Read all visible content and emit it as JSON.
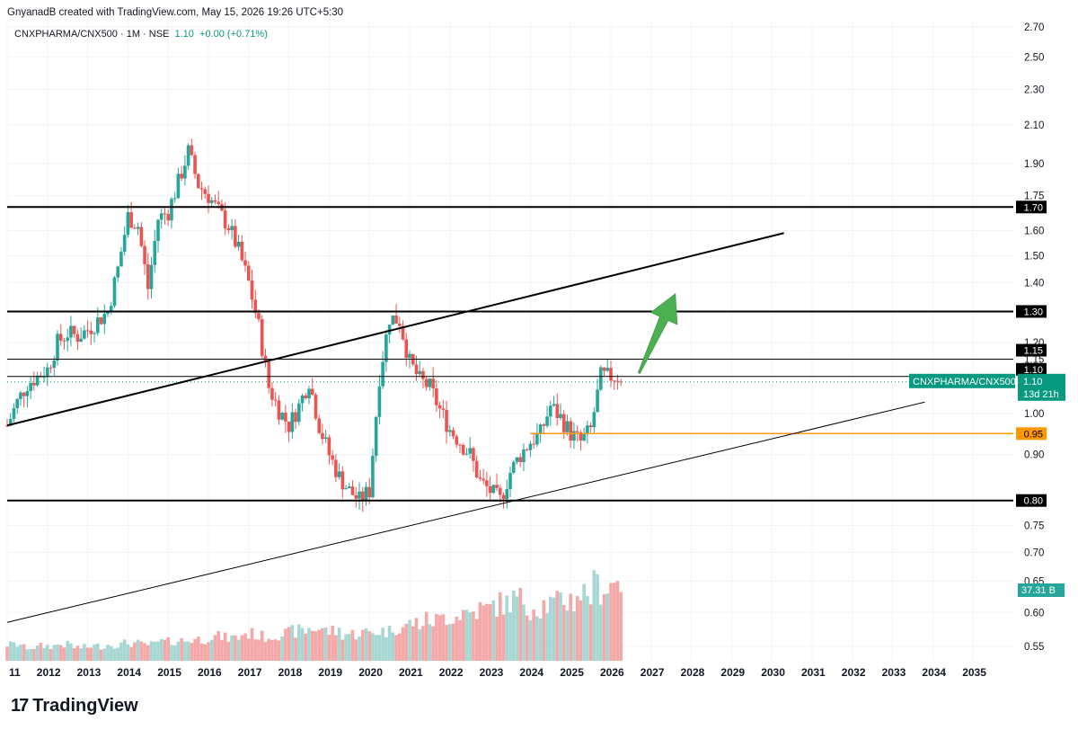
{
  "header": {
    "created_by": "GnyanadB created with TradingView.com, May 15, 2026 19:26 UTC+5:30"
  },
  "legend": {
    "symbol": "CNXPHARMA/CNX500 · 1M · NSE",
    "last": "1.10",
    "change": "+0.00 (+0.71%)"
  },
  "brand": {
    "logo": "17",
    "name": "TradingView"
  },
  "colors": {
    "up": "#26a69a",
    "down": "#ef5350",
    "vol_up": "#a7d7d3",
    "vol_down": "#f4a9a8",
    "line": "#000000",
    "support": "#ff9800",
    "accent": "#089981"
  },
  "chart_data": {
    "type": "candlestick",
    "y_scale": "log",
    "ylim": [
      0.53,
      2.75
    ],
    "xlim": [
      2011.0,
      2036.0
    ],
    "y_ticks": [
      "2.70",
      "2.50",
      "2.30",
      "2.10",
      "1.90",
      "1.75",
      "1.60",
      "1.50",
      "1.40",
      "1.20",
      "1.15",
      "1.00",
      "0.90",
      "0.75",
      "0.70",
      "0.65",
      "0.60",
      "0.55"
    ],
    "x_ticks": [
      "11",
      "2012",
      "2013",
      "2014",
      "2015",
      "2016",
      "2017",
      "2018",
      "2019",
      "2020",
      "2021",
      "2022",
      "2023",
      "2024",
      "2025",
      "2026",
      "2027",
      "2028",
      "2029",
      "2030",
      "2031",
      "2032",
      "2033",
      "2034",
      "2035"
    ],
    "closes": [
      [
        2011.0,
        0.97
      ],
      [
        2011.25,
        1.03
      ],
      [
        2011.5,
        1.08
      ],
      [
        2011.75,
        1.1
      ],
      [
        2012.0,
        1.12
      ],
      [
        2012.25,
        1.2
      ],
      [
        2012.5,
        1.23
      ],
      [
        2012.75,
        1.22
      ],
      [
        2013.0,
        1.24
      ],
      [
        2013.25,
        1.27
      ],
      [
        2013.5,
        1.3
      ],
      [
        2013.75,
        1.45
      ],
      [
        2014.0,
        1.66
      ],
      [
        2014.25,
        1.62
      ],
      [
        2014.5,
        1.38
      ],
      [
        2014.75,
        1.65
      ],
      [
        2015.0,
        1.68
      ],
      [
        2015.25,
        1.81
      ],
      [
        2015.5,
        1.96
      ],
      [
        2015.75,
        1.8
      ],
      [
        2016.0,
        1.75
      ],
      [
        2016.25,
        1.68
      ],
      [
        2016.5,
        1.62
      ],
      [
        2016.75,
        1.52
      ],
      [
        2017.0,
        1.4
      ],
      [
        2017.25,
        1.25
      ],
      [
        2017.5,
        1.07
      ],
      [
        2017.75,
        1.01
      ],
      [
        2018.0,
        0.97
      ],
      [
        2018.25,
        1.02
      ],
      [
        2018.5,
        1.09
      ],
      [
        2018.75,
        0.97
      ],
      [
        2019.0,
        0.9
      ],
      [
        2019.25,
        0.85
      ],
      [
        2019.5,
        0.82
      ],
      [
        2019.75,
        0.8
      ],
      [
        2020.0,
        0.82
      ],
      [
        2020.25,
        1.1
      ],
      [
        2020.5,
        1.28
      ],
      [
        2020.75,
        1.27
      ],
      [
        2021.0,
        1.14
      ],
      [
        2021.25,
        1.09
      ],
      [
        2021.5,
        1.07
      ],
      [
        2021.75,
        1.01
      ],
      [
        2022.0,
        0.96
      ],
      [
        2022.25,
        0.93
      ],
      [
        2022.5,
        0.9
      ],
      [
        2022.75,
        0.84
      ],
      [
        2023.0,
        0.82
      ],
      [
        2023.25,
        0.8
      ],
      [
        2023.5,
        0.86
      ],
      [
        2023.75,
        0.9
      ],
      [
        2024.0,
        0.93
      ],
      [
        2024.25,
        0.95
      ],
      [
        2024.5,
        1.02
      ],
      [
        2024.75,
        0.99
      ],
      [
        2025.0,
        0.95
      ],
      [
        2025.25,
        0.93
      ],
      [
        2025.5,
        0.96
      ],
      [
        2025.75,
        1.1
      ],
      [
        2026.33,
        1.1
      ]
    ],
    "volume_relative": [
      0.12,
      0.1,
      0.11,
      0.12,
      0.1,
      0.11,
      0.12,
      0.13,
      0.12,
      0.14,
      0.15,
      0.16,
      0.18,
      0.17,
      0.2,
      0.18,
      0.2,
      0.22,
      0.24,
      0.22,
      0.2,
      0.21,
      0.22,
      0.25,
      0.28,
      0.3,
      0.33,
      0.36,
      0.38,
      0.42,
      0.45,
      0.4,
      0.42,
      0.45,
      0.5,
      0.55,
      0.58,
      0.7,
      0.75,
      0.65,
      0.6,
      0.55,
      0.55,
      0.5,
      0.48,
      0.45,
      0.42,
      0.45,
      0.5,
      0.55,
      0.65,
      0.8,
      1.0,
      0.9,
      0.8,
      0.75,
      0.7,
      0.8,
      0.78,
      0.8,
      0.42
    ],
    "lines": [
      {
        "name": "level-1.70",
        "price": 1.7
      },
      {
        "name": "level-1.30",
        "price": 1.3
      },
      {
        "name": "level-1.15",
        "price": 1.15
      },
      {
        "name": "level-1.10",
        "price": 1.1
      },
      {
        "name": "level-0.80",
        "price": 0.8
      }
    ],
    "support_level": {
      "price": 0.95,
      "from": 2024.0,
      "to": 2036.0
    },
    "trendlines": [
      {
        "name": "upper-trendline",
        "from": [
          2011.0,
          0.97
        ],
        "to": [
          2030.3,
          1.59
        ],
        "width": 2
      },
      {
        "name": "lower-trendline",
        "from": [
          2011.0,
          0.585
        ],
        "to": [
          2033.8,
          1.03
        ],
        "width": 1
      }
    ],
    "arrow": {
      "from": [
        2026.7,
        1.11
      ],
      "to": [
        2027.6,
        1.36
      ]
    }
  },
  "price_labels": {
    "l170": "1.70",
    "l130": "1.30",
    "l115": "1.15",
    "l110": "1.10",
    "l095": "0.95",
    "l080": "0.80",
    "current_symbol": "CNXPHARMA/CNX500",
    "current_price": "1.10",
    "countdown": "13d 21h",
    "volume": "37.31 B"
  }
}
